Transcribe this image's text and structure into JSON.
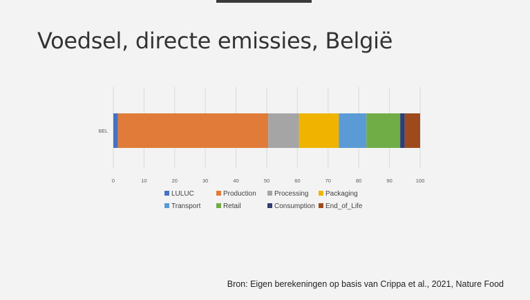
{
  "slide": {
    "title": "Voedsel, directe emissies, België",
    "source": "Bron: Eigen berekeningen op basis van Crippa et al., 2021, Nature Food"
  },
  "chart_data": {
    "type": "bar",
    "orientation": "horizontal",
    "stacked": true,
    "categories": [
      "BEL"
    ],
    "xlim": [
      0,
      100
    ],
    "x_ticks": [
      0,
      10,
      20,
      30,
      40,
      50,
      60,
      70,
      80,
      90,
      100
    ],
    "grid": true,
    "legend_position": "bottom",
    "series": [
      {
        "name": "LULUC",
        "values": [
          1.5
        ],
        "color": "#4472c4"
      },
      {
        "name": "Production",
        "values": [
          49
        ],
        "color": "#e07b39"
      },
      {
        "name": "Processing",
        "values": [
          10
        ],
        "color": "#a5a5a5"
      },
      {
        "name": "Packaging",
        "values": [
          13
        ],
        "color": "#f0b400"
      },
      {
        "name": "Transport",
        "values": [
          9
        ],
        "color": "#5b9bd5"
      },
      {
        "name": "Retail",
        "values": [
          11
        ],
        "color": "#70ad47"
      },
      {
        "name": "Consumption",
        "values": [
          1.5
        ],
        "color": "#2e3f73"
      },
      {
        "name": "End_of_Life",
        "values": [
          5
        ],
        "color": "#9e4a1c"
      }
    ]
  }
}
